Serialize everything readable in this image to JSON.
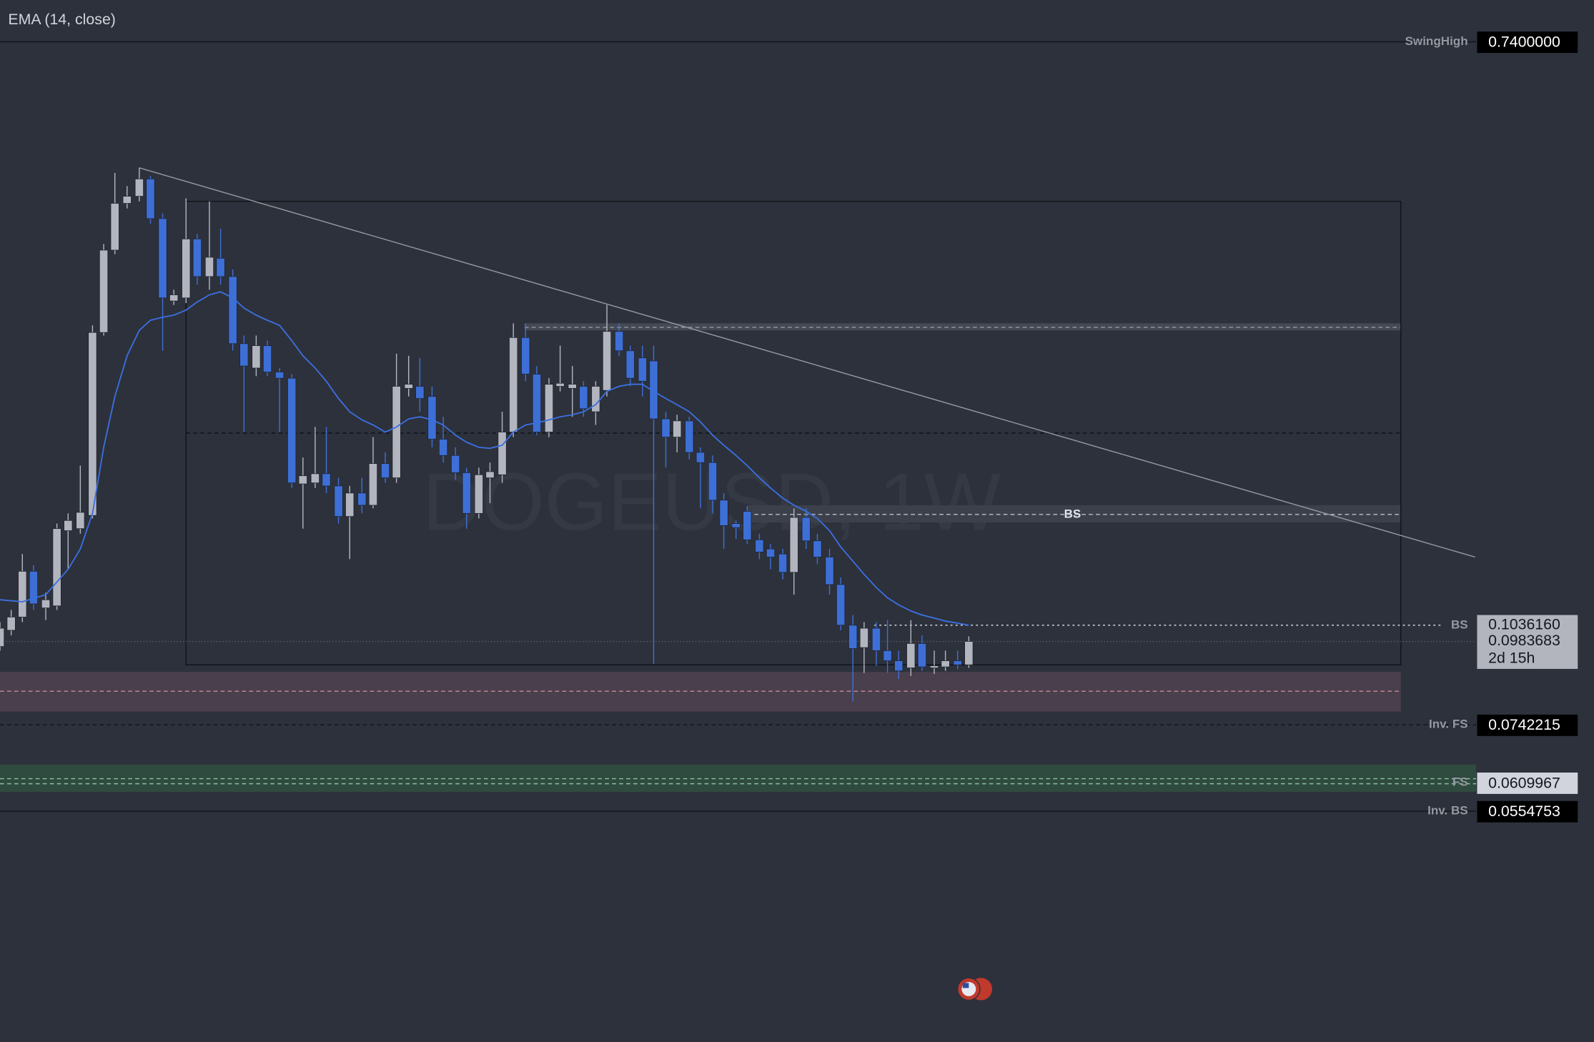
{
  "header": {
    "indicator": "EMA (14, close)"
  },
  "watermark": "DOGEUSD, 1W",
  "chart_labels": {
    "mid_band": "BS"
  },
  "levels": [
    {
      "label": "SwingHigh",
      "price": "0.7400000"
    },
    {
      "label": "BS",
      "price": "0.1036160"
    },
    {
      "label": "Inv. FS",
      "price": "0.0742215"
    },
    {
      "label": "FS",
      "price": "0.0609967"
    },
    {
      "label": "Inv. BS",
      "price": "0.0554753"
    }
  ],
  "current": {
    "price": "0.0983683",
    "countdown": "2d 15h"
  }
}
